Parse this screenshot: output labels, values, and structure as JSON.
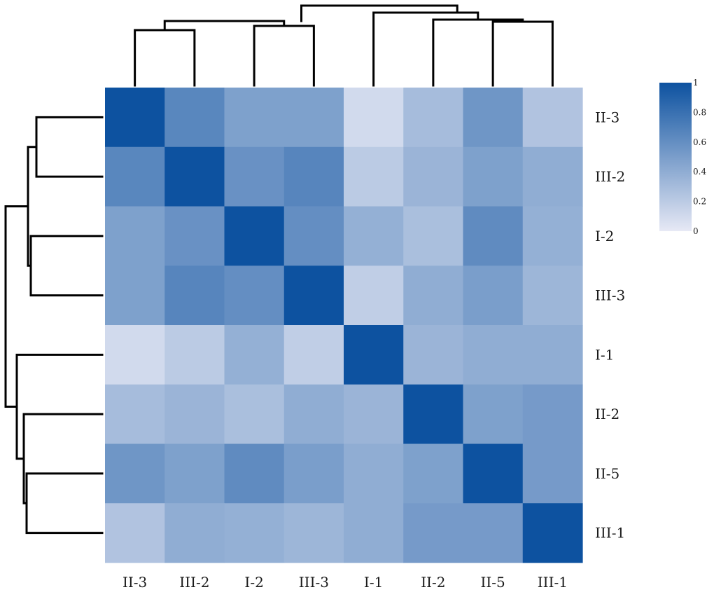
{
  "chart_data": {
    "type": "heatmap",
    "title": "",
    "xlabel": "",
    "ylabel": "",
    "rows": [
      "II-3",
      "III-2",
      "I-2",
      "III-3",
      "I-1",
      "II-2",
      "II-5",
      "III-1"
    ],
    "columns": [
      "II-3",
      "III-2",
      "I-2",
      "III-3",
      "I-1",
      "II-2",
      "II-5",
      "III-1"
    ],
    "values": [
      [
        1.0,
        0.65,
        0.48,
        0.48,
        0.1,
        0.3,
        0.55,
        0.25
      ],
      [
        0.65,
        1.0,
        0.58,
        0.66,
        0.2,
        0.35,
        0.48,
        0.4
      ],
      [
        0.48,
        0.58,
        1.0,
        0.6,
        0.38,
        0.28,
        0.62,
        0.38
      ],
      [
        0.48,
        0.66,
        0.6,
        1.0,
        0.18,
        0.4,
        0.5,
        0.34
      ],
      [
        0.1,
        0.2,
        0.38,
        0.18,
        1.0,
        0.35,
        0.4,
        0.4
      ],
      [
        0.3,
        0.35,
        0.28,
        0.4,
        0.35,
        1.0,
        0.48,
        0.52
      ],
      [
        0.55,
        0.48,
        0.62,
        0.5,
        0.4,
        0.48,
        1.0,
        0.52
      ],
      [
        0.25,
        0.4,
        0.38,
        0.34,
        0.4,
        0.52,
        0.52,
        1.0
      ]
    ],
    "colorscale": {
      "min": 0,
      "max": 1,
      "low_color": "#e7e9f5",
      "high_color": "#0d52a0"
    },
    "colorbar_ticks": [
      "1",
      "0.8",
      "0.6",
      "0.4",
      "0.2",
      "0"
    ],
    "colorbar_values": [
      1,
      0.8,
      0.6,
      0.4,
      0.2,
      0
    ],
    "legend_position": "top-right",
    "dendrogram_merge_order": [
      [
        "II-3",
        "III-2"
      ],
      [
        "I-2",
        "III-3"
      ],
      [
        "II-5",
        "III-1"
      ],
      [
        "II-2",
        "II-5|III-1"
      ],
      [
        "I-1",
        "II-2|II-5|III-1"
      ],
      [
        "II-3|III-2",
        "I-2|III-3"
      ]
    ]
  }
}
